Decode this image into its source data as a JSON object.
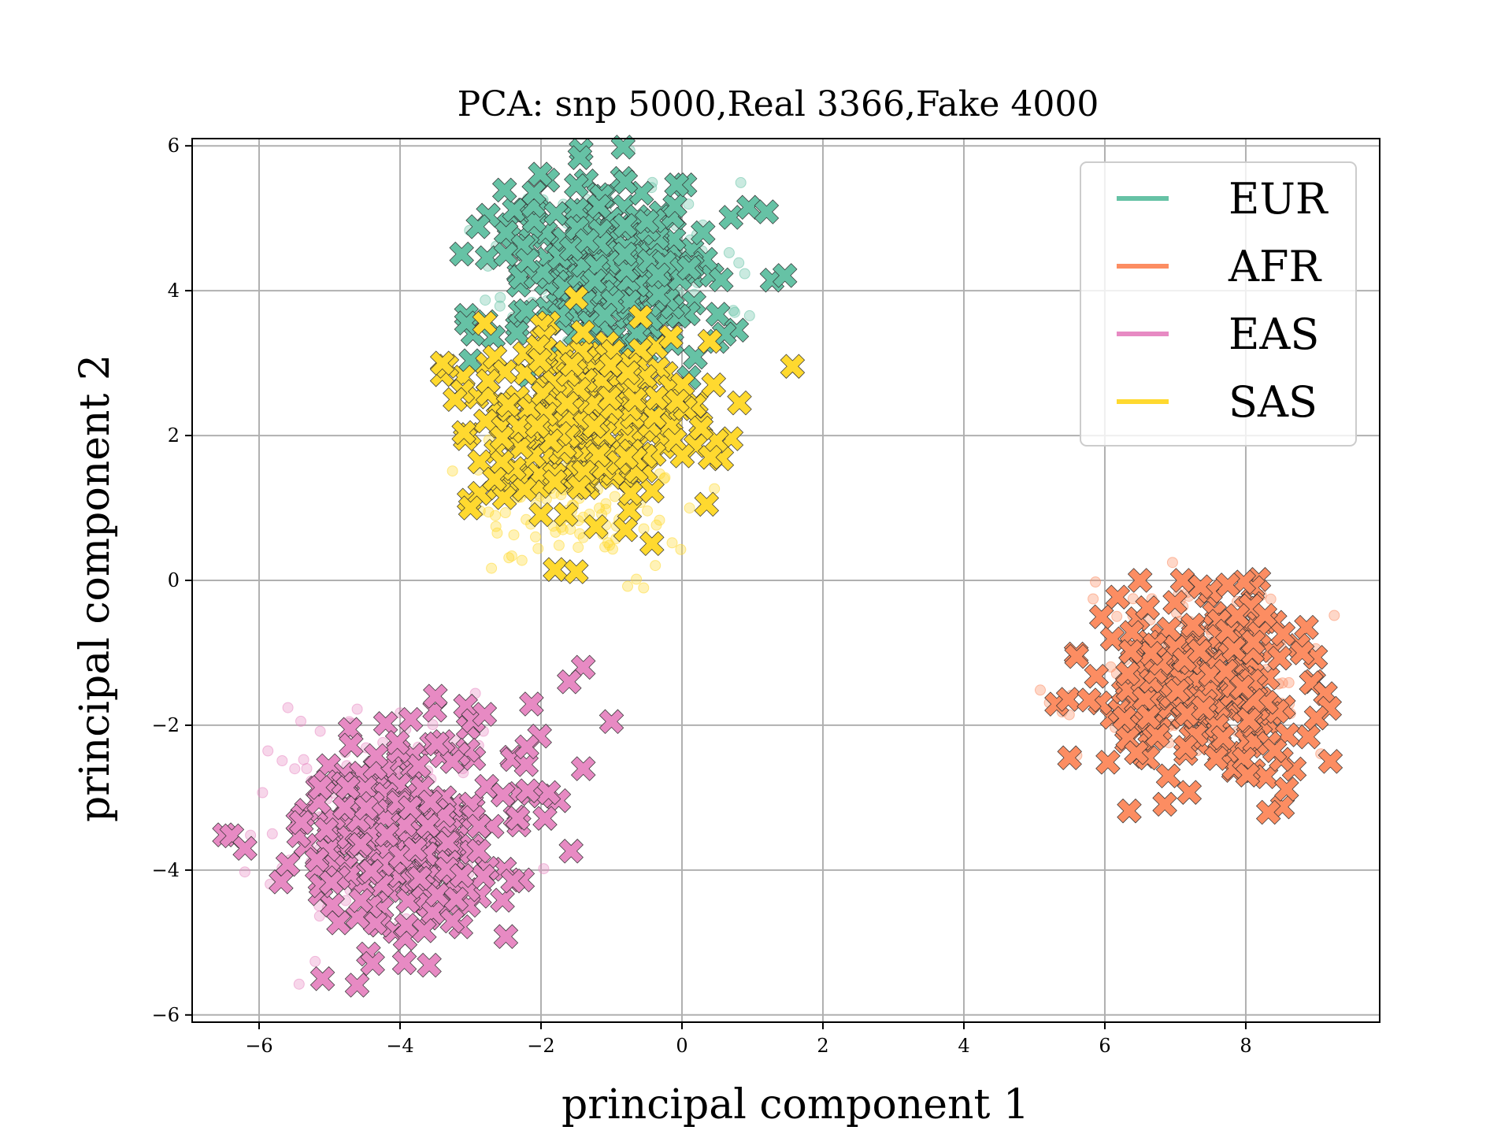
{
  "chart_data": {
    "type": "scatter",
    "title": "PCA: snp 5000,Real 3366,Fake 4000",
    "xlabel": "principal component 1",
    "ylabel": "principal component 2",
    "xlim": [
      -6.95,
      9.9
    ],
    "ylim": [
      -6.1,
      6.1
    ],
    "xticks": [
      -6,
      -4,
      -2,
      0,
      2,
      4,
      6,
      8
    ],
    "yticks": [
      -6,
      -4,
      -2,
      0,
      2,
      4,
      6
    ],
    "grid": true,
    "legend": {
      "placement": "top-right",
      "entries": [
        "EUR",
        "AFR",
        "EAS",
        "SAS"
      ]
    },
    "markers": {
      "real": "circle (translucent)",
      "fake": "x-marker (filled, dark edge)"
    },
    "series": [
      {
        "name": "EUR",
        "color": "#66c2a5",
        "clusters": [
          {
            "kind": "real",
            "center": [
              -0.9,
              4.3
            ],
            "spread": [
              0.75,
              0.6
            ],
            "count": 150,
            "seed": 11
          },
          {
            "kind": "fake",
            "center": [
              -1.0,
              4.25
            ],
            "spread": [
              0.8,
              0.65
            ],
            "count": 260,
            "seed": 12
          }
        ],
        "extra_points": [
          [
            -2.1,
            5.35
          ],
          [
            -1.5,
            5.45
          ],
          [
            -0.8,
            5.5
          ],
          [
            0.5,
            3.3
          ],
          [
            0.6,
            3.4
          ],
          [
            -2.5,
            4.5
          ],
          [
            0.3,
            4.8
          ],
          [
            0.1,
            2.8
          ]
        ]
      },
      {
        "name": "AFR",
        "color": "#fc8d62",
        "clusters": [
          {
            "kind": "real",
            "center": [
              7.4,
              -1.3
            ],
            "spread": [
              0.75,
              0.6
            ],
            "count": 180,
            "seed": 21
          },
          {
            "kind": "fake",
            "center": [
              7.4,
              -1.5
            ],
            "spread": [
              0.7,
              0.6
            ],
            "count": 260,
            "seed": 22
          }
        ],
        "extra_points": [
          [
            5.6,
            -1.05
          ],
          [
            5.5,
            -2.45
          ],
          [
            9.2,
            -2.5
          ],
          [
            9.0,
            -1.9
          ],
          [
            6.5,
            0.0
          ],
          [
            7.1,
            0.0
          ],
          [
            6.9,
            -2.7
          ],
          [
            8.8,
            -1.0
          ]
        ]
      },
      {
        "name": "EAS",
        "color": "#e78ac3",
        "clusters": [
          {
            "kind": "real",
            "center": [
              -4.3,
              -3.4
            ],
            "spread": [
              0.85,
              0.75
            ],
            "count": 200,
            "seed": 31
          },
          {
            "kind": "fake",
            "center": [
              -4.0,
              -3.5
            ],
            "spread": [
              0.9,
              0.75
            ],
            "count": 260,
            "seed": 32
          }
        ],
        "extra_points": [
          [
            -6.2,
            -3.7
          ],
          [
            -5.1,
            -5.5
          ],
          [
            -1.4,
            -1.2
          ],
          [
            -1.6,
            -1.4
          ],
          [
            -1.0,
            -1.95
          ],
          [
            -1.4,
            -2.6
          ],
          [
            -3.5,
            -1.6
          ],
          [
            -2.8,
            -1.85
          ],
          [
            -2.2,
            -2.3
          ]
        ]
      },
      {
        "name": "SAS",
        "color": "#ffd92f",
        "clusters": [
          {
            "kind": "real",
            "center": [
              -1.5,
              1.3
            ],
            "spread": [
              0.75,
              0.55
            ],
            "count": 180,
            "seed": 41
          },
          {
            "kind": "fake",
            "center": [
              -1.4,
              2.25
            ],
            "spread": [
              0.85,
              0.65
            ],
            "count": 260,
            "seed": 42
          }
        ],
        "extra_points": [
          [
            -1.5,
            3.9
          ],
          [
            -2.8,
            3.55
          ],
          [
            -3.4,
            3.0
          ],
          [
            0.4,
            1.7
          ],
          [
            0.35,
            1.05
          ],
          [
            0.45,
            2.7
          ],
          [
            -1.8,
            0.15
          ],
          [
            -1.5,
            0.12
          ],
          [
            -3.0,
            1.0
          ],
          [
            -0.8,
            0.7
          ]
        ]
      }
    ]
  }
}
